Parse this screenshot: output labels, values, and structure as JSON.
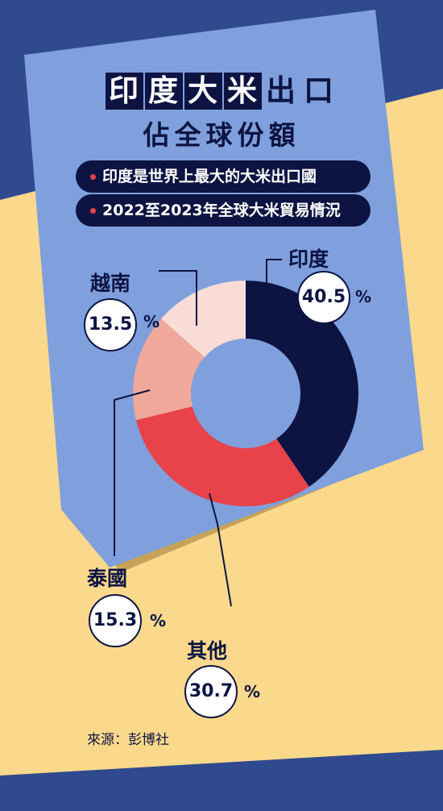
{
  "title": {
    "line1": [
      "印",
      "度",
      "大",
      "米",
      "出",
      "口"
    ],
    "line2": "佔全球份額"
  },
  "bullets": [
    "印度是世界上最大的大米出口國",
    "2022至2023年全球大米貿易情況"
  ],
  "percent_sign": "%",
  "source": "來源：彭博社",
  "colors": {
    "background_blue": "#2f4a8e",
    "panel_blue": "#7fa0dc",
    "cream": "#fbd98c",
    "navy": "#0d1442",
    "red": "#e8424a",
    "salmon": "#f0a89b",
    "pink": "#f9dcd5"
  },
  "chart_data": {
    "type": "pie",
    "donut": true,
    "title": "印度大米出口佔全球份額",
    "unit": "%",
    "categories": [
      "印度",
      "其他",
      "泰國",
      "越南"
    ],
    "values": [
      40.5,
      30.7,
      15.3,
      13.5
    ],
    "value_labels": [
      "40.5",
      "30.7",
      "15.3",
      "13.5"
    ],
    "colors": [
      "#0d1442",
      "#e8424a",
      "#f0a89b",
      "#f9dcd5"
    ],
    "legend": "none"
  }
}
